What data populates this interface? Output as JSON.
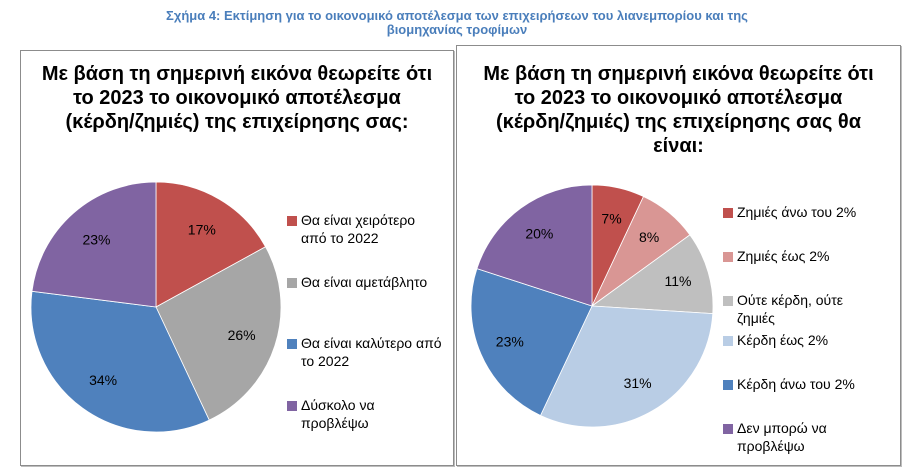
{
  "figure_title": {
    "line1": "Σχήμα 4: Εκτίμηση για το οικονομικό αποτέλεσμα των επιχειρήσεων του λιανεμπορίου και της",
    "line2": "βιομηχανίας τροφίμων"
  },
  "chart_data": [
    {
      "type": "pie",
      "title": "Με βάση τη σημερινή εικόνα θεωρείτε ότι το 2023 το οικονομικό αποτέλεσμα (κέρδη/ζημιές) της επιχείρησης σας:",
      "title_lines": [
        "Με βάση τη σημερινή εικόνα θεωρείτε ότι",
        "το 2023 το οικονομικό αποτέλεσμα",
        "(κέρδη/ζημιές) της επιχείρησης σας:"
      ],
      "start": "12 o'clock",
      "direction": "clockwise",
      "legend_position": "right",
      "categories": [
        "Θα είναι χειρότερο από το 2022",
        "Θα είναι αμετάβλητο",
        "Θα είναι καλύτερο από το 2022",
        "Δύσκολο να προβλέψω"
      ],
      "legend_lines": [
        [
          "Θα είναι χειρότερο",
          "από το 2022"
        ],
        [
          "Θα είναι αμετάβλητο"
        ],
        [
          "Θα είναι καλύτερο από",
          "το 2022"
        ],
        [
          "Δύσκολο να",
          "προβλέψω"
        ]
      ],
      "values": [
        17,
        26,
        34,
        23
      ],
      "labels": [
        "17%",
        "26%",
        "34%",
        "23%"
      ],
      "colors": [
        "#c0504d",
        "#a6a6a6",
        "#4f81bd",
        "#8064a2"
      ]
    },
    {
      "type": "pie",
      "title": "Με βάση τη σημερινή εικόνα θεωρείτε ότι το 2023 το οικονομικό αποτέλεσμα (κέρδη/ζημιές) της επιχείρησης σας θα είναι:",
      "title_lines": [
        "Με βάση τη σημερινή εικόνα θεωρείτε ότι",
        "το 2023 το οικονομικό αποτέλεσμα",
        "(κέρδη/ζημιές) της επιχείρησης σας θα",
        "είναι:"
      ],
      "start": "12 o'clock",
      "direction": "clockwise",
      "legend_position": "right",
      "categories": [
        "Ζημιές άνω του 2%",
        "Ζημιές έως 2%",
        "Ούτε κέρδη, ούτε ζημιές",
        "Κέρδη έως 2%",
        "Κέρδη άνω του 2%",
        "Δεν μπορώ να προβλέψω"
      ],
      "legend_lines": [
        [
          "Ζημιές άνω του 2%"
        ],
        [
          "Ζημιές έως 2%"
        ],
        [
          "Ούτε κέρδη, ούτε",
          "ζημιές"
        ],
        [
          "Κέρδη έως 2%"
        ],
        [
          "Κέρδη άνω του 2%"
        ],
        [
          "Δεν μπορώ να",
          "προβλέψω"
        ]
      ],
      "values": [
        7,
        8,
        11,
        31,
        23,
        20
      ],
      "labels": [
        "7%",
        "8%",
        "11%",
        "31%",
        "23%",
        "20%"
      ],
      "colors": [
        "#c0504d",
        "#d99694",
        "#bfbfbf",
        "#b9cde5",
        "#4f81bd",
        "#8064a2"
      ]
    }
  ]
}
